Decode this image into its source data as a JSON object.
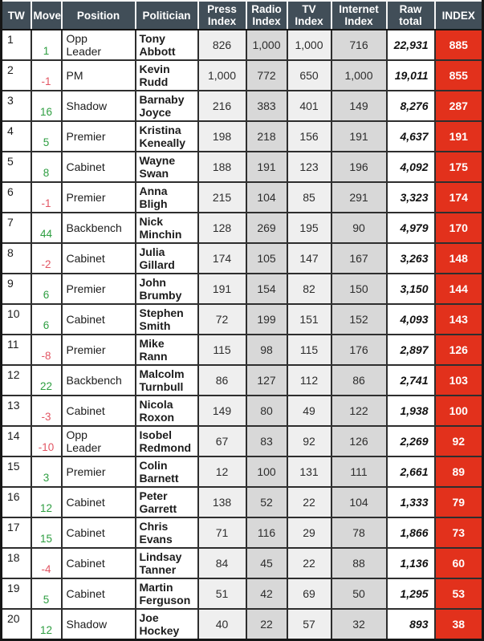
{
  "colors": {
    "header_bg": "#414e58",
    "header_text": "#ffffff",
    "index_bg": "#e2311c",
    "col_light": "#efefef",
    "col_dark": "#d8d8d8",
    "move_up": "#2e9e41",
    "move_down": "#e25563"
  },
  "chart_data": {
    "type": "table",
    "columns": [
      "TW",
      "Move",
      "Position",
      "Politician",
      "Press Index",
      "Radio Index",
      "TV Index",
      "Internet Index",
      "Raw total",
      "INDEX"
    ],
    "rows": [
      {
        "tw": "1",
        "move": "1",
        "move_dir": "up",
        "position": "Opp\nLeader",
        "politician": "Tony\nAbbott",
        "press": "826",
        "radio": "1,000",
        "tv": "1,000",
        "internet": "716",
        "raw_total": "22,931",
        "index": "885"
      },
      {
        "tw": "2",
        "move": "-1",
        "move_dir": "down",
        "position": "PM",
        "politician": "Kevin\nRudd",
        "press": "1,000",
        "radio": "772",
        "tv": "650",
        "internet": "1,000",
        "raw_total": "19,011",
        "index": "855"
      },
      {
        "tw": "3",
        "move": "16",
        "move_dir": "up",
        "position": "Shadow",
        "politician": "Barnaby\nJoyce",
        "press": "216",
        "radio": "383",
        "tv": "401",
        "internet": "149",
        "raw_total": "8,276",
        "index": "287"
      },
      {
        "tw": "4",
        "move": "5",
        "move_dir": "up",
        "position": "Premier",
        "politician": "Kristina\nKeneally",
        "press": "198",
        "radio": "218",
        "tv": "156",
        "internet": "191",
        "raw_total": "4,637",
        "index": "191"
      },
      {
        "tw": "5",
        "move": "8",
        "move_dir": "up",
        "position": "Cabinet",
        "politician": "Wayne\nSwan",
        "press": "188",
        "radio": "191",
        "tv": "123",
        "internet": "196",
        "raw_total": "4,092",
        "index": "175"
      },
      {
        "tw": "6",
        "move": "-1",
        "move_dir": "down",
        "position": "Premier",
        "politician": "Anna\nBligh",
        "press": "215",
        "radio": "104",
        "tv": "85",
        "internet": "291",
        "raw_total": "3,323",
        "index": "174"
      },
      {
        "tw": "7",
        "move": "44",
        "move_dir": "up",
        "position": "Backbench",
        "politician": "Nick\nMinchin",
        "press": "128",
        "radio": "269",
        "tv": "195",
        "internet": "90",
        "raw_total": "4,979",
        "index": "170"
      },
      {
        "tw": "8",
        "move": "-2",
        "move_dir": "down",
        "position": "Cabinet",
        "politician": "Julia\nGillard",
        "press": "174",
        "radio": "105",
        "tv": "147",
        "internet": "167",
        "raw_total": "3,263",
        "index": "148"
      },
      {
        "tw": "9",
        "move": "6",
        "move_dir": "up",
        "position": "Premier",
        "politician": "John\nBrumby",
        "press": "191",
        "radio": "154",
        "tv": "82",
        "internet": "150",
        "raw_total": "3,150",
        "index": "144"
      },
      {
        "tw": "10",
        "move": "6",
        "move_dir": "up",
        "position": "Cabinet",
        "politician": "Stephen\nSmith",
        "press": "72",
        "radio": "199",
        "tv": "151",
        "internet": "152",
        "raw_total": "4,093",
        "index": "143"
      },
      {
        "tw": "11",
        "move": "-8",
        "move_dir": "down",
        "position": "Premier",
        "politician": "Mike\nRann",
        "press": "115",
        "radio": "98",
        "tv": "115",
        "internet": "176",
        "raw_total": "2,897",
        "index": "126"
      },
      {
        "tw": "12",
        "move": "22",
        "move_dir": "up",
        "position": "Backbench",
        "politician": "Malcolm\nTurnbull",
        "press": "86",
        "radio": "127",
        "tv": "112",
        "internet": "86",
        "raw_total": "2,741",
        "index": "103"
      },
      {
        "tw": "13",
        "move": "-3",
        "move_dir": "down",
        "position": "Cabinet",
        "politician": "Nicola\nRoxon",
        "press": "149",
        "radio": "80",
        "tv": "49",
        "internet": "122",
        "raw_total": "1,938",
        "index": "100"
      },
      {
        "tw": "14",
        "move": "-10",
        "move_dir": "down",
        "position": "Opp\nLeader",
        "politician": "Isobel\nRedmond",
        "press": "67",
        "radio": "83",
        "tv": "92",
        "internet": "126",
        "raw_total": "2,269",
        "index": "92"
      },
      {
        "tw": "15",
        "move": "3",
        "move_dir": "up",
        "position": "Premier",
        "politician": "Colin\nBarnett",
        "press": "12",
        "radio": "100",
        "tv": "131",
        "internet": "111",
        "raw_total": "2,661",
        "index": "89"
      },
      {
        "tw": "16",
        "move": "12",
        "move_dir": "up",
        "position": "Cabinet",
        "politician": "Peter\nGarrett",
        "press": "138",
        "radio": "52",
        "tv": "22",
        "internet": "104",
        "raw_total": "1,333",
        "index": "79"
      },
      {
        "tw": "17",
        "move": "15",
        "move_dir": "up",
        "position": "Cabinet",
        "politician": "Chris\nEvans",
        "press": "71",
        "radio": "116",
        "tv": "29",
        "internet": "78",
        "raw_total": "1,866",
        "index": "73"
      },
      {
        "tw": "18",
        "move": "-4",
        "move_dir": "down",
        "position": "Cabinet",
        "politician": "Lindsay\nTanner",
        "press": "84",
        "radio": "45",
        "tv": "22",
        "internet": "88",
        "raw_total": "1,136",
        "index": "60"
      },
      {
        "tw": "19",
        "move": "5",
        "move_dir": "up",
        "position": "Cabinet",
        "politician": "Martin\nFerguson",
        "press": "51",
        "radio": "42",
        "tv": "69",
        "internet": "50",
        "raw_total": "1,295",
        "index": "53"
      },
      {
        "tw": "20",
        "move": "12",
        "move_dir": "up",
        "position": "Shadow",
        "politician": "Joe\nHockey",
        "press": "40",
        "radio": "22",
        "tv": "57",
        "internet": "32",
        "raw_total": "893",
        "index": "38"
      }
    ]
  }
}
